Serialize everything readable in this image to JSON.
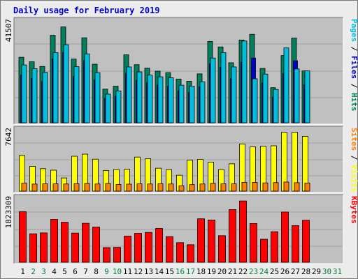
{
  "title": "Daily usage for February 2019",
  "colors": {
    "title": "#0000cc",
    "hits": "#00805c",
    "files": "#0000cc",
    "pages": "#00c0e0",
    "visits": "#ffff00",
    "sites": "#ff8000",
    "kbytes": "#ff0000",
    "weekday": "#000000",
    "weekend": "#008040",
    "panel_bg": "#c0c0c0",
    "grid": "#a0a0a0"
  },
  "panels": {
    "top": {
      "ymax_label": "41507",
      "legend": [
        {
          "text": "Pages",
          "color": "#00c0e0"
        },
        {
          "text": " / ",
          "color": "#000000"
        },
        {
          "text": "Files",
          "color": "#0000cc"
        },
        {
          "text": " / ",
          "color": "#000000"
        },
        {
          "text": "Hits",
          "color": "#00805c"
        }
      ]
    },
    "middle": {
      "ymax_label": "7642",
      "legend": [
        {
          "text": "Sites",
          "color": "#ff8000"
        },
        {
          "text": " / ",
          "color": "#000000"
        },
        {
          "text": "Visits",
          "color": "#ffff00"
        }
      ]
    },
    "bottom": {
      "ymax_label": "1823309",
      "legend": [
        {
          "text": "KBytes",
          "color": "#ff0000"
        }
      ]
    }
  },
  "chart_data": {
    "type": "bar",
    "title": "Daily usage for February 2019",
    "categories": [
      "1",
      "2",
      "3",
      "4",
      "5",
      "6",
      "7",
      "8",
      "9",
      "10",
      "11",
      "12",
      "13",
      "14",
      "15",
      "16",
      "17",
      "18",
      "19",
      "20",
      "21",
      "22",
      "23",
      "24",
      "25",
      "26",
      "27",
      "28",
      "29",
      "30",
      "31"
    ],
    "weekend_days": [
      "2",
      "3",
      "9",
      "10",
      "16",
      "17",
      "23",
      "24",
      "30",
      "31"
    ],
    "scales": {
      "hits_files_pages": 41507,
      "visits_sites": 7642,
      "kbytes": 1823309
    },
    "series": [
      {
        "name": "Hits",
        "values": [
          26500,
          24700,
          22800,
          35400,
          38800,
          25800,
          34400,
          23700,
          13600,
          14800,
          27500,
          23500,
          22100,
          20900,
          20300,
          17700,
          16800,
          19800,
          32900,
          30700,
          24300,
          33500,
          35800,
          22000,
          14200,
          27200,
          34300,
          21000,
          0,
          0,
          0
        ]
      },
      {
        "name": "Files",
        "values": [
          19300,
          17900,
          16700,
          25900,
          28500,
          18800,
          25200,
          17300,
          9900,
          10800,
          20100,
          17200,
          16200,
          15300,
          14800,
          12900,
          12300,
          14500,
          24000,
          22400,
          17800,
          24500,
          26200,
          16100,
          10400,
          19900,
          25100,
          15400,
          0,
          0,
          0
        ]
      },
      {
        "name": "Pages",
        "values": [
          23400,
          21900,
          20400,
          28400,
          31600,
          22700,
          27900,
          20300,
          11600,
          12900,
          22600,
          20600,
          19300,
          18600,
          18200,
          15200,
          14800,
          16600,
          26200,
          28400,
          22600,
          33100,
          17800,
          19700,
          13500,
          30300,
          21800,
          21000,
          0,
          0,
          0
        ]
      },
      {
        "name": "Visits",
        "values": [
          4380,
          3050,
          2760,
          2580,
          1620,
          4290,
          4550,
          3930,
          2520,
          2660,
          2680,
          4190,
          3980,
          2820,
          2650,
          1960,
          3810,
          3900,
          3570,
          2660,
          3360,
          5800,
          5440,
          5530,
          5580,
          7240,
          7250,
          6740,
          0,
          0,
          0
        ]
      },
      {
        "name": "Sites",
        "values": [
          980,
          870,
          900,
          900,
          880,
          920,
          940,
          880,
          940,
          810,
          860,
          900,
          880,
          920,
          880,
          660,
          800,
          880,
          950,
          900,
          900,
          1080,
          1080,
          1010,
          1050,
          1120,
          1040,
          1000,
          0,
          0,
          0
        ]
      },
      {
        "name": "KBytes",
        "values": [
          1420000,
          800000,
          825000,
          1205000,
          1125000,
          820000,
          1095000,
          990000,
          412000,
          418000,
          735000,
          812000,
          840000,
          950000,
          720000,
          552000,
          493000,
          1222000,
          1188000,
          748000,
          1482000,
          1723000,
          1090000,
          647000,
          859000,
          1412000,
          1028000,
          1181000,
          0,
          0,
          0
        ]
      }
    ]
  }
}
